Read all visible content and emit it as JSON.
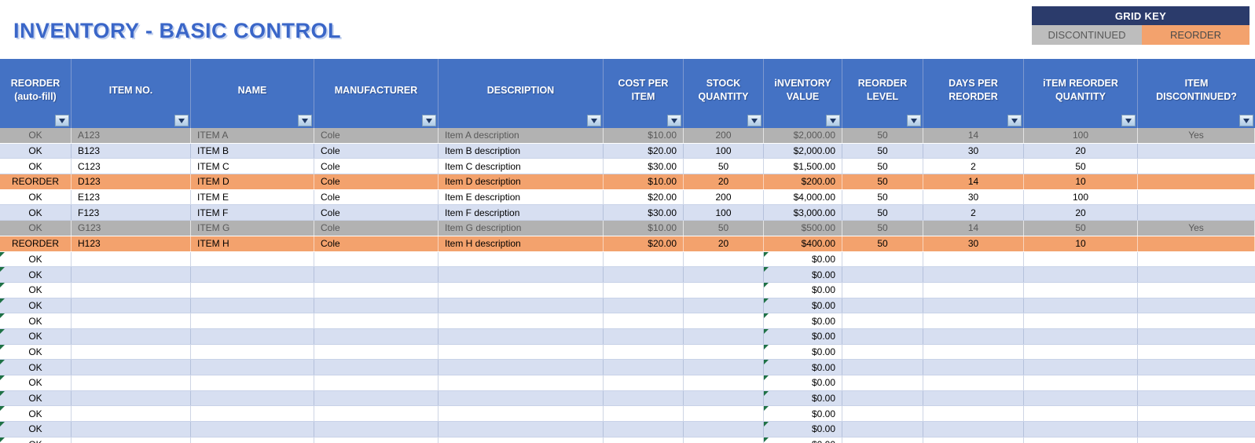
{
  "title": "INVENTORY - BASIC CONTROL",
  "grid_key": {
    "header": "GRID KEY",
    "items": [
      {
        "label": "DISCONTINUED",
        "color": "#BDBDBD"
      },
      {
        "label": "REORDER",
        "color": "#F3A26D"
      }
    ]
  },
  "table": {
    "columns": [
      {
        "label": "REORDER\n(auto-fill)",
        "filter_icon": "filter-dropdown-icon"
      },
      {
        "label": "ITEM NO.",
        "filter_icon": "filter-dropdown-icon"
      },
      {
        "label": "NAME",
        "filter_icon": "filter-dropdown-icon"
      },
      {
        "label": "MANUFACTURER",
        "filter_icon": "filter-dropdown-icon"
      },
      {
        "label": "DESCRIPTION",
        "filter_icon": "filter-dropdown-icon"
      },
      {
        "label": "COST PER\nITEM",
        "filter_icon": "filter-dropdown-icon"
      },
      {
        "label": "STOCK\nQUANTITY",
        "filter_icon": "filter-dropdown-icon"
      },
      {
        "label": "iNVENTORY\nVALUE",
        "filter_icon": "filter-dropdown-icon"
      },
      {
        "label": "REORDER\nLEVEL",
        "filter_icon": "filter-dropdown-icon"
      },
      {
        "label": "DAYS PER\nREORDER",
        "filter_icon": "filter-dropdown-icon"
      },
      {
        "label": "iTEM REORDER\nQUANTITY",
        "filter_icon": "filter-dropdown-icon"
      },
      {
        "label": "ITEM\nDISCONTINUED?",
        "filter_icon": "filter-dropdown-icon"
      }
    ],
    "rows": [
      {
        "fill": "gray",
        "cells": [
          "OK",
          "A123",
          "ITEM A",
          "Cole",
          "Item A description",
          "$10.00",
          "200",
          "$2,000.00",
          "50",
          "14",
          "100",
          "Yes"
        ]
      },
      {
        "fill": "blue",
        "cells": [
          "OK",
          "B123",
          "ITEM B",
          "Cole",
          "Item B description",
          "$20.00",
          "100",
          "$2,000.00",
          "50",
          "30",
          "20",
          ""
        ]
      },
      {
        "fill": "white",
        "cells": [
          "OK",
          "C123",
          "ITEM C",
          "Cole",
          "Item C description",
          "$30.00",
          "50",
          "$1,500.00",
          "50",
          "2",
          "50",
          ""
        ]
      },
      {
        "fill": "orange",
        "cells": [
          "REORDER",
          "D123",
          "ITEM D",
          "Cole",
          "Item D description",
          "$10.00",
          "20",
          "$200.00",
          "50",
          "14",
          "10",
          ""
        ]
      },
      {
        "fill": "white",
        "cells": [
          "OK",
          "E123",
          "ITEM E",
          "Cole",
          "Item E description",
          "$20.00",
          "200",
          "$4,000.00",
          "50",
          "30",
          "100",
          ""
        ]
      },
      {
        "fill": "blue",
        "cells": [
          "OK",
          "F123",
          "ITEM F",
          "Cole",
          "Item F description",
          "$30.00",
          "100",
          "$3,000.00",
          "50",
          "2",
          "20",
          ""
        ]
      },
      {
        "fill": "gray",
        "cells": [
          "OK",
          "G123",
          "ITEM G",
          "Cole",
          "Item G description",
          "$10.00",
          "50",
          "$500.00",
          "50",
          "14",
          "50",
          "Yes"
        ]
      },
      {
        "fill": "orange",
        "cells": [
          "REORDER",
          "H123",
          "ITEM H",
          "Cole",
          "Item H description",
          "$20.00",
          "20",
          "$400.00",
          "50",
          "30",
          "10",
          ""
        ]
      }
    ],
    "empty_row": {
      "reorder": "OK",
      "inventory_value": "$0.00"
    },
    "empty_row_count": 13
  },
  "colors": {
    "header_blue": "#4472C4",
    "title_blue": "#3A66C8",
    "key_navy": "#2B3B6B",
    "row_gray": "#B2B2B2",
    "row_blue": "#D7DFF1",
    "row_orange": "#F3A26D",
    "gray_text": "#595959",
    "error_corner_green": "#1E7145"
  }
}
